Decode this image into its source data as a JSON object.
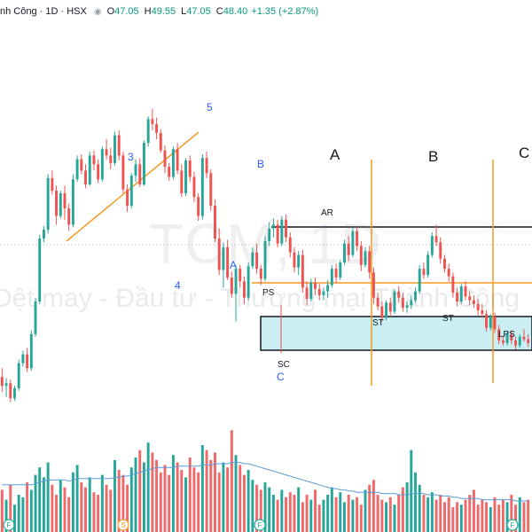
{
  "header": {
    "symbol": "nh Công · 1D · HSX",
    "open_label": "O",
    "open": "47.05",
    "high_label": "H",
    "high": "49.55",
    "low_label": "L",
    "low": "47.05",
    "close_label": "C",
    "close": "48.40",
    "change": "+1.35 (+2.87%)"
  },
  "watermark": {
    "ticker": "TCM, 1D",
    "company": "Dệt may - Đầu tư - Thương mại Thành Công"
  },
  "annotations": {
    "wave_3": "3",
    "wave_4": "4",
    "wave_5": "5",
    "wave_B": "B",
    "wave_A": "A",
    "wave_C": "C",
    "phase_A": "A",
    "phase_B": "B",
    "phase_C": "C",
    "ar": "AR",
    "ps": "PS",
    "sc": "SC",
    "st1": "ST",
    "st2": "ST",
    "lps": "LPS"
  },
  "colors": {
    "up": "#26a69a",
    "down": "#ef5350",
    "vol_up": "#26a69a",
    "vol_down": "#f06868",
    "trend": "#f59a23",
    "phase_line": "#f59a23",
    "range_line": "#131722",
    "zone_fill": "#c9eef4",
    "wave_label": "#2962ff",
    "ma": "#5b9bd5"
  },
  "chart_data": {
    "type": "candlestick",
    "price_range": [
      33,
      64
    ],
    "candles": [
      [
        42.5,
        43.2,
        41.3,
        41.8
      ],
      [
        41.8,
        42.4,
        40.9,
        42.0
      ],
      [
        42.0,
        42.3,
        40.5,
        40.8
      ],
      [
        40.8,
        41.8,
        40.6,
        41.6
      ],
      [
        41.6,
        43.9,
        41.4,
        43.6
      ],
      [
        43.6,
        44.6,
        43.3,
        44.3
      ],
      [
        44.3,
        44.8,
        42.9,
        43.2
      ],
      [
        43.2,
        46.2,
        43.0,
        45.9
      ],
      [
        45.9,
        48.8,
        45.7,
        48.5
      ],
      [
        48.5,
        53.8,
        48.3,
        53.5
      ],
      [
        53.5,
        54.5,
        53.2,
        54.2
      ],
      [
        54.2,
        58.6,
        53.9,
        58.3
      ],
      [
        58.3,
        58.9,
        57.0,
        57.3
      ],
      [
        57.3,
        57.7,
        54.6,
        55.3
      ],
      [
        55.3,
        57.3,
        55.1,
        57.1
      ],
      [
        57.1,
        57.7,
        55.0,
        55.9
      ],
      [
        55.9,
        56.3,
        54.1,
        54.6
      ],
      [
        54.6,
        58.6,
        54.4,
        58.2
      ],
      [
        58.2,
        60.1,
        58.0,
        59.8
      ],
      [
        59.8,
        60.2,
        58.6,
        58.9
      ],
      [
        58.9,
        59.4,
        57.5,
        57.8
      ],
      [
        57.8,
        60.4,
        57.7,
        60.1
      ],
      [
        60.1,
        60.5,
        58.9,
        59.4
      ],
      [
        59.4,
        59.8,
        57.9,
        58.2
      ],
      [
        58.2,
        60.8,
        58.0,
        60.6
      ],
      [
        60.6,
        61.4,
        59.8,
        60.1
      ],
      [
        60.1,
        60.7,
        59.0,
        59.5
      ],
      [
        59.5,
        62.0,
        59.3,
        61.7
      ],
      [
        61.7,
        62.1,
        59.7,
        60.1
      ],
      [
        60.1,
        60.4,
        57.1,
        57.4
      ],
      [
        57.4,
        57.8,
        55.6,
        56.1
      ],
      [
        56.1,
        58.7,
        55.9,
        58.5
      ],
      [
        58.5,
        59.8,
        58.0,
        59.4
      ],
      [
        59.4,
        59.9,
        57.6,
        57.8
      ],
      [
        57.8,
        61.3,
        57.7,
        61.1
      ],
      [
        61.1,
        63.2,
        60.8,
        63.0
      ],
      [
        63.0,
        63.8,
        62.1,
        62.6
      ],
      [
        62.6,
        63.1,
        61.4,
        61.9
      ],
      [
        61.9,
        62.2,
        60.3,
        60.5
      ],
      [
        60.5,
        60.9,
        58.7,
        59.2
      ],
      [
        59.2,
        59.5,
        58.1,
        58.4
      ],
      [
        58.4,
        60.8,
        58.2,
        60.6
      ],
      [
        60.6,
        61.1,
        58.6,
        58.9
      ],
      [
        58.9,
        59.4,
        56.8,
        57.1
      ],
      [
        57.1,
        59.9,
        56.9,
        59.7
      ],
      [
        59.7,
        60.1,
        58.0,
        58.4
      ],
      [
        58.4,
        58.8,
        56.4,
        56.8
      ],
      [
        56.8,
        57.1,
        54.9,
        55.3
      ],
      [
        55.3,
        60.2,
        55.0,
        59.9
      ],
      [
        59.9,
        60.4,
        58.3,
        58.7
      ],
      [
        58.7,
        59.0,
        55.7,
        56.1
      ],
      [
        56.1,
        56.6,
        53.2,
        53.5
      ],
      [
        53.5,
        54.3,
        50.6,
        51.0
      ],
      [
        51.0,
        53.2,
        49.6,
        52.8
      ],
      [
        52.8,
        53.4,
        50.2,
        50.4
      ],
      [
        50.4,
        50.9,
        48.8,
        49.1
      ],
      [
        49.1,
        51.4,
        46.9,
        51.1
      ],
      [
        51.1,
        51.4,
        49.6,
        50.1
      ],
      [
        50.1,
        50.5,
        48.3,
        48.8
      ],
      [
        48.8,
        51.6,
        48.6,
        51.3
      ],
      [
        51.3,
        52.8,
        51.1,
        52.4
      ],
      [
        52.4,
        53.1,
        50.7,
        51.1
      ],
      [
        51.1,
        51.4,
        49.8,
        50.3
      ],
      [
        50.3,
        53.7,
        50.1,
        53.3
      ],
      [
        53.3,
        54.8,
        52.9,
        54.3
      ],
      [
        54.3,
        55.1,
        53.6,
        54.6
      ],
      [
        54.6,
        55.0,
        52.8,
        53.1
      ],
      [
        53.1,
        55.3,
        52.9,
        55.0
      ],
      [
        55.0,
        55.4,
        53.2,
        53.6
      ],
      [
        53.6,
        54.0,
        52.0,
        52.4
      ],
      [
        52.4,
        52.8,
        50.8,
        51.2
      ],
      [
        51.2,
        52.5,
        50.6,
        52.2
      ],
      [
        52.2,
        52.6,
        49.2,
        49.6
      ],
      [
        49.6,
        50.1,
        48.2,
        48.7
      ],
      [
        48.7,
        50.3,
        48.5,
        50.0
      ],
      [
        50.0,
        50.4,
        49.0,
        49.5
      ],
      [
        49.5,
        49.9,
        48.6,
        49.0
      ],
      [
        49.0,
        49.6,
        48.6,
        49.3
      ],
      [
        49.3,
        50.2,
        48.8,
        49.8
      ],
      [
        49.8,
        51.4,
        49.6,
        51.1
      ],
      [
        51.1,
        51.5,
        50.0,
        50.4
      ],
      [
        50.4,
        51.8,
        50.2,
        51.6
      ],
      [
        51.6,
        53.4,
        51.4,
        53.1
      ],
      [
        53.1,
        53.7,
        51.7,
        52.2
      ],
      [
        52.2,
        54.4,
        52.0,
        54.1
      ],
      [
        54.1,
        54.5,
        52.5,
        52.9
      ],
      [
        52.9,
        53.3,
        50.9,
        51.4
      ],
      [
        51.4,
        52.8,
        51.2,
        52.5
      ],
      [
        52.5,
        52.9,
        50.3,
        50.8
      ],
      [
        50.8,
        51.2,
        48.3,
        48.8
      ],
      [
        48.8,
        49.2,
        47.8,
        48.1
      ],
      [
        48.1,
        48.5,
        46.9,
        47.2
      ],
      [
        47.2,
        48.6,
        47.0,
        48.4
      ],
      [
        48.4,
        48.8,
        47.3,
        47.7
      ],
      [
        47.7,
        49.5,
        47.5,
        49.3
      ],
      [
        49.3,
        49.7,
        48.4,
        48.8
      ],
      [
        48.8,
        49.2,
        47.7,
        48.0
      ],
      [
        48.0,
        48.5,
        47.6,
        48.2
      ],
      [
        48.2,
        49.0,
        47.9,
        48.6
      ],
      [
        48.6,
        49.6,
        48.4,
        49.3
      ],
      [
        49.3,
        51.4,
        49.1,
        51.1
      ],
      [
        51.1,
        51.6,
        50.3,
        50.6
      ],
      [
        50.6,
        52.5,
        50.4,
        52.2
      ],
      [
        52.2,
        54.0,
        52.0,
        53.7
      ],
      [
        53.7,
        54.6,
        52.9,
        53.2
      ],
      [
        53.2,
        53.6,
        51.5,
        51.9
      ],
      [
        51.9,
        52.2,
        50.8,
        51.1
      ],
      [
        51.1,
        51.5,
        50.1,
        50.5
      ],
      [
        50.5,
        50.8,
        48.8,
        49.2
      ],
      [
        49.2,
        49.6,
        48.1,
        48.5
      ],
      [
        48.5,
        49.9,
        48.3,
        49.7
      ],
      [
        49.7,
        50.1,
        48.6,
        48.9
      ],
      [
        48.9,
        49.3,
        48.2,
        48.6
      ],
      [
        48.6,
        49.0,
        48.0,
        48.3
      ],
      [
        48.3,
        48.7,
        47.4,
        47.8
      ],
      [
        47.8,
        48.3,
        47.2,
        47.5
      ],
      [
        47.5,
        47.8,
        46.1,
        46.4
      ],
      [
        46.4,
        47.5,
        46.2,
        47.3
      ],
      [
        47.3,
        47.6,
        46.0,
        46.3
      ],
      [
        46.3,
        46.6,
        45.1,
        45.4
      ],
      [
        45.4,
        45.8,
        45.0,
        45.2
      ],
      [
        45.2,
        46.1,
        45.0,
        45.9
      ],
      [
        45.9,
        46.2,
        45.1,
        45.4
      ],
      [
        45.4,
        45.7,
        44.7,
        45.0
      ],
      [
        45.0,
        45.9,
        44.8,
        45.7
      ],
      [
        45.7,
        46.3,
        45.3,
        45.5
      ],
      [
        45.5,
        45.9,
        44.9,
        45.2
      ]
    ],
    "volume_range": [
      0,
      100
    ],
    "volumes": [
      34,
      26,
      38,
      22,
      30,
      28,
      40,
      34,
      46,
      52,
      44,
      56,
      38,
      30,
      42,
      36,
      28,
      48,
      54,
      40,
      36,
      44,
      32,
      30,
      46,
      38,
      34,
      58,
      50,
      46,
      38,
      52,
      60,
      66,
      56,
      72,
      64,
      58,
      48,
      54,
      46,
      62,
      56,
      50,
      44,
      60,
      52,
      48,
      70,
      66,
      58,
      64,
      48,
      56,
      52,
      82,
      62,
      54,
      46,
      50,
      42,
      38,
      34,
      40,
      36,
      30,
      26,
      34,
      28,
      32,
      30,
      36,
      24,
      30,
      26,
      34,
      22,
      26,
      30,
      36,
      28,
      32,
      24,
      30,
      26,
      28,
      22,
      34,
      38,
      42,
      30,
      26,
      24,
      28,
      22,
      30,
      36,
      40,
      66,
      48,
      38,
      30,
      28,
      32,
      26,
      30,
      24,
      28,
      20,
      24,
      22,
      26,
      30,
      34,
      22,
      26,
      24,
      20,
      28,
      22,
      26,
      24,
      30,
      22,
      28,
      24,
      26
    ],
    "ma_volume": [
      38,
      38,
      38,
      38,
      38,
      38,
      38,
      38,
      39,
      40,
      41,
      42,
      42,
      42,
      42,
      42,
      41,
      42,
      43,
      43,
      43,
      43,
      43,
      43,
      43,
      43,
      43,
      44,
      44,
      45,
      45,
      46,
      47,
      48,
      49,
      50,
      51,
      52,
      52,
      52,
      52,
      52,
      53,
      53,
      53,
      53,
      53,
      53,
      54,
      54,
      54,
      55,
      55,
      55,
      55,
      56,
      56,
      56,
      55,
      55,
      54,
      53,
      52,
      51,
      50,
      49,
      48,
      47,
      46,
      45,
      44,
      43,
      42,
      41,
      40,
      39,
      38,
      37,
      36,
      35,
      35,
      34,
      34,
      33,
      33,
      32,
      32,
      32,
      32,
      32,
      32,
      31,
      31,
      31,
      31,
      30,
      30,
      30,
      31,
      31,
      31,
      31,
      30,
      30,
      30,
      29,
      29,
      29,
      28,
      28,
      27,
      27,
      27,
      27,
      27,
      26,
      26,
      26,
      26,
      26,
      26,
      26,
      26,
      25,
      25,
      25,
      25
    ]
  }
}
